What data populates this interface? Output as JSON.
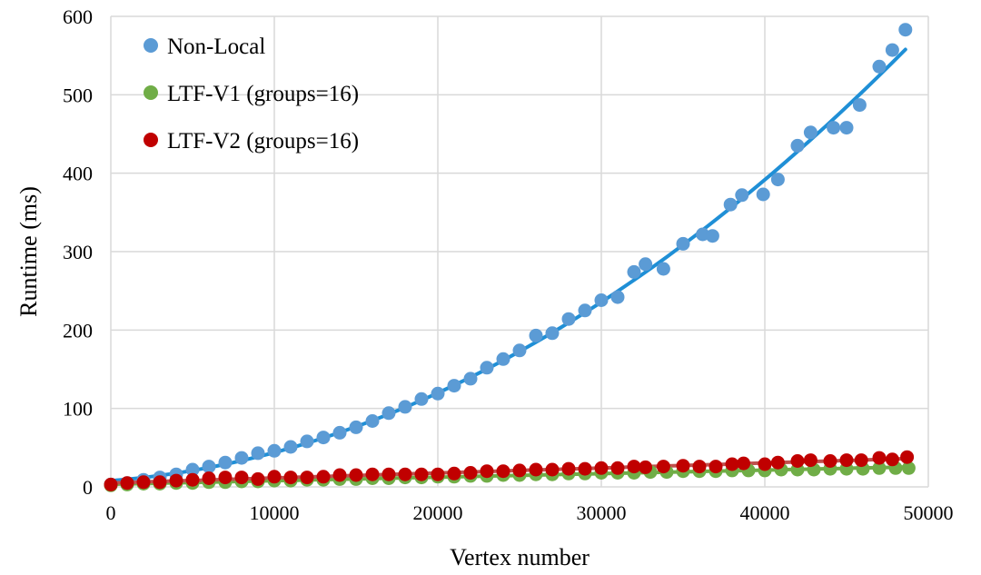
{
  "chart_data": {
    "type": "scatter",
    "title": "",
    "xlabel": "Vertex  number",
    "ylabel": "Runtime (ms)",
    "xlim": [
      0,
      50000
    ],
    "ylim": [
      0,
      600
    ],
    "x_ticks": [
      "0",
      "10000",
      "20000",
      "30000",
      "40000",
      "50000"
    ],
    "y_ticks": [
      "0",
      "100",
      "200",
      "300",
      "400",
      "500",
      "600"
    ],
    "grid": true,
    "legend_position": "top-left",
    "series": [
      {
        "name": "Non-Local",
        "color": "#5B9BD5",
        "trend_color": "#1F8FD6",
        "trendline": "polynomial",
        "x": [
          0,
          1000,
          2000,
          3000,
          4000,
          5000,
          6000,
          7000,
          8000,
          9000,
          10000,
          11000,
          12000,
          13000,
          14000,
          15000,
          16000,
          17000,
          18000,
          19000,
          20000,
          21000,
          22000,
          23000,
          24000,
          25000,
          26000,
          27000,
          28000,
          29000,
          30000,
          31000,
          32000,
          32700,
          33800,
          35000,
          36200,
          36800,
          37900,
          38600,
          39900,
          40800,
          42000,
          42800,
          44200,
          45000,
          45800,
          47000,
          47800,
          48600
        ],
        "y": [
          3,
          5,
          9,
          12,
          16,
          22,
          26,
          31,
          37,
          43,
          46,
          51,
          58,
          63,
          69,
          76,
          84,
          94,
          102,
          112,
          119,
          129,
          138,
          152,
          163,
          174,
          193,
          196,
          214,
          225,
          238,
          242,
          274,
          284,
          278,
          310,
          322,
          320,
          360,
          372,
          373,
          392,
          435,
          452,
          458,
          458,
          487,
          536,
          557,
          583
        ]
      },
      {
        "name": "LTF-V1 (groups=16)",
        "color": "#70AD47",
        "trend_color": "#70AD47",
        "trendline": "linear",
        "x": [
          0,
          1000,
          2000,
          3000,
          4000,
          5000,
          6000,
          7000,
          8000,
          9000,
          10000,
          11000,
          12000,
          13000,
          14000,
          15000,
          16000,
          17000,
          18000,
          19000,
          20000,
          21000,
          22000,
          23000,
          24000,
          25000,
          26000,
          27000,
          28000,
          29000,
          30000,
          31000,
          32000,
          33000,
          34000,
          35000,
          36000,
          37000,
          38000,
          39000,
          40000,
          41000,
          42000,
          43000,
          44000,
          45000,
          46000,
          47000,
          48000,
          48800
        ],
        "y": [
          2,
          3,
          4,
          4,
          5,
          5,
          6,
          6,
          7,
          7,
          8,
          8,
          9,
          9,
          10,
          10,
          11,
          11,
          12,
          12,
          13,
          13,
          14,
          14,
          15,
          15,
          16,
          16,
          17,
          17,
          18,
          18,
          18,
          19,
          19,
          20,
          20,
          20,
          21,
          21,
          21,
          22,
          22,
          22,
          23,
          23,
          23,
          24,
          24,
          24
        ]
      },
      {
        "name": "LTF-V2 (groups=16)",
        "color": "#C00000",
        "trend_color": "#C0504D",
        "trendline": "linear",
        "x": [
          0,
          1000,
          2000,
          3000,
          4000,
          5000,
          6000,
          7000,
          8000,
          9000,
          10000,
          11000,
          12000,
          13000,
          14000,
          15000,
          16000,
          17000,
          18000,
          19000,
          20000,
          21000,
          22000,
          23000,
          24000,
          25000,
          26000,
          27000,
          28000,
          29000,
          30000,
          31000,
          32000,
          32700,
          33800,
          35000,
          36000,
          37000,
          38000,
          38700,
          40000,
          40800,
          42000,
          42800,
          44000,
          45000,
          45900,
          47000,
          47800,
          48700
        ],
        "y": [
          3,
          5,
          6,
          6,
          8,
          9,
          11,
          12,
          12,
          10,
          13,
          12,
          12,
          13,
          15,
          15,
          16,
          16,
          16,
          16,
          16,
          17,
          18,
          20,
          20,
          21,
          22,
          22,
          23,
          23,
          24,
          24,
          26,
          25,
          26,
          27,
          26,
          26,
          29,
          30,
          29,
          31,
          33,
          34,
          33,
          34,
          34,
          37,
          35,
          38
        ]
      }
    ]
  }
}
